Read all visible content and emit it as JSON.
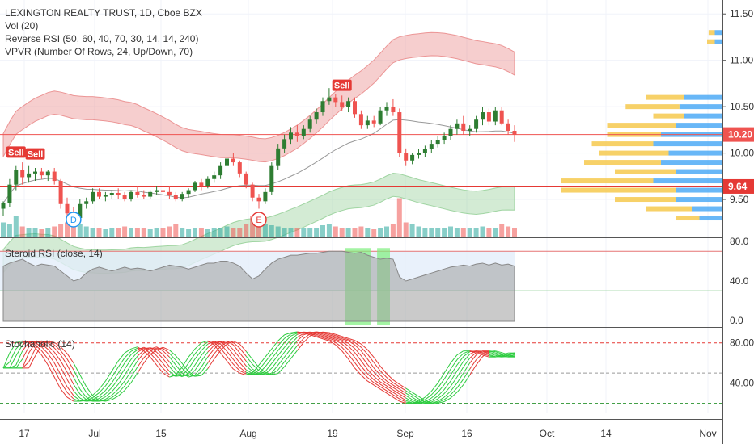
{
  "legend": {
    "title": "LEXINGTON REALTY TRUST, 1D, Cboe BZX",
    "vol": "Vol (20)",
    "reverse_rsi": "Reverse RSI (50, 60, 40, 70, 30, 14, 14, 240)",
    "vpvr": "VPVR (Number Of Rows, 24, Up/Down, 70)"
  },
  "panes": {
    "rsi_title": "Steroid RSI (close, 14)",
    "stoch_title": "Stochaholic (14)"
  },
  "colors": {
    "up": "#26a69a",
    "down": "#ef5350",
    "candle_up": "#2e7d32",
    "band_red": "#e57373",
    "band_green": "#81c784",
    "poc_line": "#e53935",
    "vpvr_up": "#f5c542",
    "vpvr_down": "#42a5f5"
  },
  "chart_data": [
    {
      "type": "candlestick",
      "title": "LEXINGTON REALTY TRUST, 1D, Cboe BZX",
      "y_ticks": [
        "11.50",
        "11.00",
        "10.50",
        "10.00",
        "9.50"
      ],
      "ylim": [
        9.1,
        11.65
      ],
      "x_ticks": [
        "17",
        "Jul",
        "15",
        "Aug",
        "19",
        "Sep",
        "16",
        "Oct",
        "14",
        "Nov"
      ],
      "price_labels": [
        {
          "text": "10.20",
          "value": 10.2,
          "color": "#ef5350"
        },
        {
          "text": "9.64",
          "value": 9.64,
          "color": "#e53935"
        }
      ],
      "signals": [
        {
          "label": "Sell",
          "bar": 2,
          "price": 9.88
        },
        {
          "label": "Sell",
          "bar": 5,
          "price": 9.86
        },
        {
          "label": "Sell",
          "bar": 53,
          "price": 10.6
        }
      ],
      "events": [
        {
          "label": "D",
          "bar": 11
        },
        {
          "label": "E",
          "bar": 40
        }
      ],
      "candles": [
        [
          9.4,
          9.48,
          9.32,
          9.46
        ],
        [
          9.46,
          9.72,
          9.42,
          9.66
        ],
        [
          9.66,
          9.86,
          9.6,
          9.82
        ],
        [
          9.82,
          9.9,
          9.66,
          9.74
        ],
        [
          9.74,
          9.86,
          9.68,
          9.78
        ],
        [
          9.78,
          9.84,
          9.7,
          9.8
        ],
        [
          9.8,
          9.84,
          9.72,
          9.76
        ],
        [
          9.76,
          9.82,
          9.7,
          9.8
        ],
        [
          9.8,
          9.84,
          9.66,
          9.7
        ],
        [
          9.7,
          9.72,
          9.4,
          9.45
        ],
        [
          9.45,
          9.52,
          9.3,
          9.35
        ],
        [
          9.35,
          9.42,
          9.22,
          9.3
        ],
        [
          9.3,
          9.5,
          9.28,
          9.45
        ],
        [
          9.45,
          9.52,
          9.4,
          9.48
        ],
        [
          9.48,
          9.62,
          9.45,
          9.58
        ],
        [
          9.58,
          9.62,
          9.5,
          9.53
        ],
        [
          9.53,
          9.58,
          9.48,
          9.55
        ],
        [
          9.55,
          9.6,
          9.5,
          9.57
        ],
        [
          9.57,
          9.62,
          9.5,
          9.55
        ],
        [
          9.55,
          9.58,
          9.48,
          9.5
        ],
        [
          9.5,
          9.6,
          9.48,
          9.58
        ],
        [
          9.58,
          9.64,
          9.52,
          9.55
        ],
        [
          9.55,
          9.6,
          9.5,
          9.53
        ],
        [
          9.53,
          9.6,
          9.5,
          9.58
        ],
        [
          9.58,
          9.64,
          9.55,
          9.6
        ],
        [
          9.6,
          9.66,
          9.55,
          9.58
        ],
        [
          9.58,
          9.64,
          9.5,
          9.55
        ],
        [
          9.55,
          9.58,
          9.48,
          9.5
        ],
        [
          9.5,
          9.58,
          9.48,
          9.56
        ],
        [
          9.56,
          9.62,
          9.52,
          9.6
        ],
        [
          9.6,
          9.7,
          9.58,
          9.68
        ],
        [
          9.68,
          9.72,
          9.6,
          9.64
        ],
        [
          9.64,
          9.75,
          9.62,
          9.72
        ],
        [
          9.72,
          9.8,
          9.68,
          9.76
        ],
        [
          9.76,
          9.9,
          9.72,
          9.86
        ],
        [
          9.86,
          9.98,
          9.82,
          9.94
        ],
        [
          9.94,
          10.0,
          9.86,
          9.9
        ],
        [
          9.9,
          9.92,
          9.74,
          9.78
        ],
        [
          9.78,
          9.8,
          9.62,
          9.66
        ],
        [
          9.66,
          9.68,
          9.48,
          9.52
        ],
        [
          9.52,
          9.56,
          9.4,
          9.48
        ],
        [
          9.48,
          9.62,
          9.45,
          9.58
        ],
        [
          9.58,
          9.9,
          9.55,
          9.86
        ],
        [
          9.86,
          10.1,
          9.82,
          10.05
        ],
        [
          10.05,
          10.2,
          10.0,
          10.15
        ],
        [
          10.15,
          10.28,
          10.1,
          10.22
        ],
        [
          10.22,
          10.3,
          10.12,
          10.18
        ],
        [
          10.18,
          10.3,
          10.15,
          10.26
        ],
        [
          10.26,
          10.4,
          10.22,
          10.36
        ],
        [
          10.36,
          10.48,
          10.32,
          10.44
        ],
        [
          10.44,
          10.6,
          10.4,
          10.56
        ],
        [
          10.56,
          10.7,
          10.52,
          10.6
        ],
        [
          10.6,
          10.64,
          10.5,
          10.55
        ],
        [
          10.55,
          10.62,
          10.45,
          10.5
        ],
        [
          10.5,
          10.6,
          10.44,
          10.56
        ],
        [
          10.56,
          10.6,
          10.38,
          10.42
        ],
        [
          10.42,
          10.46,
          10.26,
          10.3
        ],
        [
          10.3,
          10.4,
          10.26,
          10.35
        ],
        [
          10.35,
          10.4,
          10.28,
          10.32
        ],
        [
          10.32,
          10.5,
          10.3,
          10.46
        ],
        [
          10.46,
          10.55,
          10.4,
          10.5
        ],
        [
          10.5,
          10.58,
          10.4,
          10.44
        ],
        [
          10.44,
          10.48,
          9.96,
          10.0
        ],
        [
          10.0,
          10.05,
          9.86,
          9.92
        ],
        [
          9.92,
          10.0,
          9.88,
          9.98
        ],
        [
          9.98,
          10.04,
          9.94,
          10.0
        ],
        [
          10.0,
          10.08,
          9.96,
          10.04
        ],
        [
          10.04,
          10.14,
          10.0,
          10.1
        ],
        [
          10.1,
          10.18,
          10.06,
          10.14
        ],
        [
          10.14,
          10.22,
          10.1,
          10.18
        ],
        [
          10.18,
          10.3,
          10.14,
          10.26
        ],
        [
          10.26,
          10.36,
          10.2,
          10.32
        ],
        [
          10.32,
          10.4,
          10.2,
          10.24
        ],
        [
          10.24,
          10.3,
          10.18,
          10.26
        ],
        [
          10.26,
          10.4,
          10.22,
          10.36
        ],
        [
          10.36,
          10.5,
          10.3,
          10.44
        ],
        [
          10.44,
          10.48,
          10.3,
          10.34
        ],
        [
          10.34,
          10.5,
          10.3,
          10.46
        ],
        [
          10.46,
          10.5,
          10.3,
          10.32
        ],
        [
          10.32,
          10.36,
          10.2,
          10.24
        ],
        [
          10.24,
          10.3,
          10.12,
          10.2
        ]
      ],
      "volume": [
        0.35,
        0.3,
        0.5,
        0.25,
        0.2,
        0.22,
        0.18,
        0.2,
        0.25,
        0.3,
        0.35,
        0.55,
        0.3,
        0.25,
        0.2,
        0.22,
        0.18,
        0.2,
        0.2,
        0.25,
        0.2,
        0.22,
        0.2,
        0.18,
        0.2,
        0.22,
        0.25,
        0.3,
        0.2,
        0.18,
        0.2,
        0.22,
        0.18,
        0.2,
        0.22,
        0.25,
        0.2,
        0.22,
        0.3,
        0.5,
        0.35,
        0.3,
        0.28,
        0.25,
        0.22,
        0.2,
        0.2,
        0.22,
        0.2,
        0.22,
        0.28,
        0.3,
        0.25,
        0.22,
        0.2,
        0.22,
        0.25,
        0.2,
        0.18,
        0.2,
        0.25,
        0.3,
        0.95,
        0.35,
        0.3,
        0.25,
        0.22,
        0.2,
        0.2,
        0.22,
        0.25,
        0.2,
        0.22,
        0.2,
        0.22,
        0.25,
        0.2,
        0.22,
        0.3,
        0.25,
        0.2
      ],
      "vpvr_rows": [
        {
          "price": 11.3,
          "up": 0.04,
          "down": 0.05
        },
        {
          "price": 11.2,
          "up": 0.05,
          "down": 0.05
        },
        {
          "price": 10.6,
          "up": 0.25,
          "down": 0.25
        },
        {
          "price": 10.5,
          "up": 0.35,
          "down": 0.28
        },
        {
          "price": 10.4,
          "up": 0.2,
          "down": 0.25
        },
        {
          "price": 10.3,
          "up": 0.45,
          "down": 0.3
        },
        {
          "price": 10.2,
          "up": 0.35,
          "down": 0.4
        },
        {
          "price": 10.1,
          "up": 0.4,
          "down": 0.45
        },
        {
          "price": 10.0,
          "up": 0.45,
          "down": 0.35
        },
        {
          "price": 9.9,
          "up": 0.5,
          "down": 0.4
        },
        {
          "price": 9.8,
          "up": 0.4,
          "down": 0.3
        },
        {
          "price": 9.7,
          "up": 0.6,
          "down": 0.45
        },
        {
          "price": 9.6,
          "up": 0.75,
          "down": 0.3
        },
        {
          "price": 9.5,
          "up": 0.4,
          "down": 0.3
        },
        {
          "price": 9.4,
          "up": 0.3,
          "down": 0.2
        },
        {
          "price": 9.3,
          "up": 0.15,
          "down": 0.15
        }
      ]
    },
    {
      "type": "area",
      "title": "Steroid RSI (close, 14)",
      "y_ticks": [
        "80.0",
        "40.0",
        "0.0"
      ],
      "ylim": [
        0,
        80
      ],
      "levels": [
        70,
        30
      ],
      "highlight_bars": [
        [
          54,
          57
        ],
        [
          59,
          60
        ]
      ],
      "values": [
        55,
        58,
        60,
        62,
        58,
        55,
        57,
        56,
        55,
        50,
        45,
        40,
        42,
        48,
        52,
        54,
        52,
        50,
        52,
        54,
        52,
        53,
        52,
        50,
        52,
        54,
        56,
        55,
        54,
        52,
        54,
        56,
        58,
        58,
        60,
        60,
        58,
        55,
        48,
        42,
        45,
        52,
        58,
        62,
        64,
        66,
        66,
        67,
        68,
        68,
        69,
        70,
        70,
        70,
        69,
        68,
        69,
        66,
        64,
        62,
        63,
        62,
        44,
        40,
        42,
        44,
        46,
        48,
        50,
        52,
        54,
        55,
        56,
        55,
        57,
        58,
        56,
        58,
        56,
        57,
        55
      ]
    },
    {
      "type": "line",
      "title": "Stochaholic (14)",
      "y_ticks": [
        "80.00",
        "40.00"
      ],
      "ylim": [
        10,
        95
      ],
      "levels": [
        80,
        50,
        20
      ],
      "values": [
        55,
        70,
        80,
        82,
        80,
        75,
        68,
        58,
        46,
        34,
        26,
        22,
        22,
        24,
        28,
        34,
        42,
        52,
        62,
        70,
        74,
        76,
        72,
        66,
        58,
        50,
        46,
        48,
        56,
        66,
        74,
        80,
        82,
        78,
        70,
        62,
        54,
        50,
        48,
        50,
        58,
        66,
        74,
        82,
        88,
        90,
        91,
        90,
        88,
        86,
        84,
        82,
        78,
        72,
        64,
        55,
        48,
        42,
        38,
        34,
        30,
        26,
        22,
        20,
        20,
        22,
        26,
        32,
        40,
        50,
        60,
        68,
        72,
        72,
        70,
        68,
        66,
        66,
        68,
        70,
        70
      ]
    }
  ]
}
